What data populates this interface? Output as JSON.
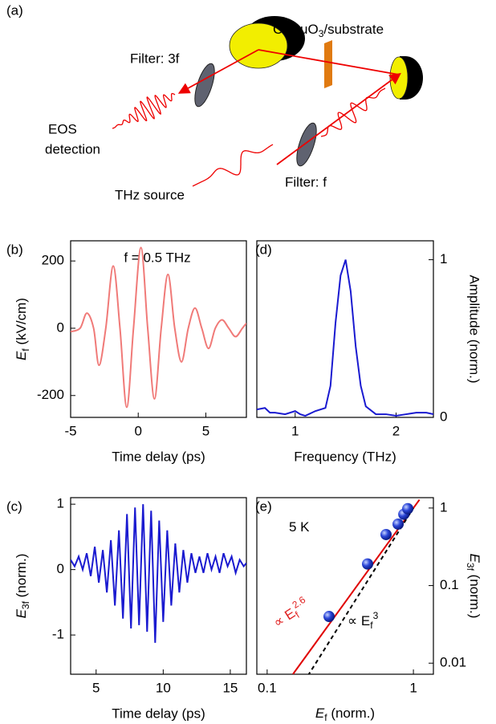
{
  "diagram": {
    "label": "(a)",
    "filter_3f": "Filter: 3f",
    "sample_label": {
      "text": "CaRuO",
      "sub": "3",
      "rest": "/substrate"
    },
    "eos": [
      "EOS",
      "detection"
    ],
    "filter_f": "Filter: f",
    "source": "THz source"
  },
  "chart_data": [
    {
      "type": "line",
      "label": "(b)",
      "annotation": "f = 0.5 THz",
      "xlabel": "Time delay (ps)",
      "ylabel": {
        "text": "E",
        "sub": "f",
        "rest": " (kV/cm)"
      },
      "xlim": [
        -5,
        8
      ],
      "ylim": [
        -265,
        260
      ],
      "xticks": [
        -5,
        0,
        5
      ],
      "yticks": [
        -200,
        0,
        200
      ],
      "yaxis_side": "left",
      "smooth": true,
      "series": [
        {
          "color": "#f07a78",
          "x": [
            -5,
            -4.3,
            -3.8,
            -3.3,
            -2.9,
            -2.4,
            -1.85,
            -1.35,
            -0.85,
            -0.35,
            0.2,
            0.7,
            1.2,
            1.7,
            2.2,
            2.7,
            3.2,
            3.7,
            4.2,
            4.7,
            5.2,
            5.7,
            6.2,
            6.7,
            7.2,
            7.7,
            8
          ],
          "values": [
            -10,
            0,
            45,
            0,
            -110,
            0,
            185,
            0,
            -235,
            0,
            240,
            0,
            -210,
            0,
            160,
            0,
            -100,
            0,
            60,
            0,
            -60,
            0,
            25,
            0,
            -25,
            0,
            15
          ]
        }
      ]
    },
    {
      "type": "line",
      "label": "(c)",
      "xlabel": "Time delay (ps)",
      "ylabel": {
        "text": "E",
        "sub": "3f",
        "rest": " (norm.)"
      },
      "xlim": [
        3.1,
        16.2
      ],
      "ylim": [
        -1.6,
        1.1
      ],
      "xticks": [
        5,
        10,
        15
      ],
      "yticks": [
        -1,
        0,
        1
      ],
      "yaxis_side": "left",
      "smooth": false,
      "series": [
        {
          "color": "#1a1ad0",
          "x": [
            3.1,
            3.4,
            3.7,
            4.0,
            4.3,
            4.6,
            4.9,
            5.2,
            5.5,
            5.8,
            6.1,
            6.4,
            6.7,
            7.0,
            7.3,
            7.6,
            7.9,
            8.2,
            8.5,
            8.8,
            9.1,
            9.4,
            9.7,
            10.0,
            10.3,
            10.6,
            10.9,
            11.2,
            11.5,
            11.8,
            12.1,
            12.4,
            12.7,
            13.0,
            13.3,
            13.6,
            13.9,
            14.2,
            14.5,
            14.8,
            15.1,
            15.4,
            15.7,
            16.0,
            16.2
          ],
          "values": [
            0.15,
            0.05,
            0.2,
            0.0,
            0.25,
            -0.1,
            0.35,
            -0.2,
            0.3,
            -0.35,
            0.45,
            -0.55,
            0.6,
            -0.75,
            0.85,
            -0.9,
            0.95,
            -0.85,
            1.0,
            -0.95,
            0.9,
            -1.12,
            0.75,
            -0.8,
            0.6,
            -0.55,
            0.4,
            -0.35,
            0.3,
            -0.2,
            0.25,
            -0.05,
            0.2,
            -0.05,
            0.25,
            0.0,
            0.2,
            -0.05,
            0.25,
            0.05,
            0.2,
            -0.05,
            0.15,
            0.05,
            0.1
          ]
        }
      ]
    },
    {
      "type": "line",
      "label": "(d)",
      "xlabel": "Frequency (THz)",
      "ylabel": "Amplitude (norm.)",
      "xlim": [
        0.62,
        2.37
      ],
      "ylim": [
        0,
        1.12
      ],
      "xticks": [
        1,
        2
      ],
      "yticks": [
        0,
        1
      ],
      "yaxis_side": "right",
      "smooth": false,
      "series": [
        {
          "color": "#1a1ad0",
          "x": [
            0.62,
            0.7,
            0.75,
            0.8,
            0.9,
            1.0,
            1.05,
            1.1,
            1.2,
            1.3,
            1.35,
            1.4,
            1.45,
            1.5,
            1.55,
            1.6,
            1.65,
            1.7,
            1.8,
            1.9,
            2.0,
            2.1,
            2.2,
            2.3,
            2.37
          ],
          "values": [
            0.05,
            0.06,
            0.03,
            0.03,
            0.02,
            0.04,
            0.02,
            0.01,
            0.04,
            0.06,
            0.2,
            0.6,
            0.9,
            1.0,
            0.8,
            0.45,
            0.2,
            0.07,
            0.02,
            0.02,
            0.01,
            0.02,
            0.03,
            0.03,
            0.02
          ]
        }
      ]
    },
    {
      "type": "scatter",
      "label": "(e)",
      "xlabel": {
        "text": "E",
        "sub": "f",
        "rest": " (norm.)"
      },
      "ylabel": {
        "text": "E",
        "sub": "3f",
        "rest": " (norm.)"
      },
      "xlim": [
        0.085,
        1.37
      ],
      "ylim": [
        0.0072,
        1.36
      ],
      "xscale": "log",
      "yscale": "log",
      "xticks": [
        0.1,
        1
      ],
      "yticks": [
        0.01,
        0.1,
        1
      ],
      "yaxis_side": "right",
      "annotations": [
        {
          "text": "5 K"
        },
        {
          "text": "∝ E",
          "sub": "f",
          "sup": "2.6",
          "color": "#e02020"
        },
        {
          "text": "∝ E",
          "sub": "f",
          "sup": "3",
          "color": "#000000"
        }
      ],
      "series": [
        {
          "type": "line",
          "color": "#e00000",
          "x": [
            0.15,
            1.1
          ],
          "values": [
            0.0072,
            1.28
          ]
        },
        {
          "type": "line",
          "color": "#000000",
          "dashed": true,
          "x": [
            0.19,
            1.0
          ],
          "values": [
            0.0069,
            1.0
          ]
        },
        {
          "type": "scatter",
          "color": "#1f3fd0",
          "x": [
            0.265,
            0.486,
            0.65,
            0.786,
            0.86,
            0.915
          ],
          "values": [
            0.04,
            0.19,
            0.455,
            0.62,
            0.83,
            0.98
          ]
        }
      ]
    }
  ]
}
